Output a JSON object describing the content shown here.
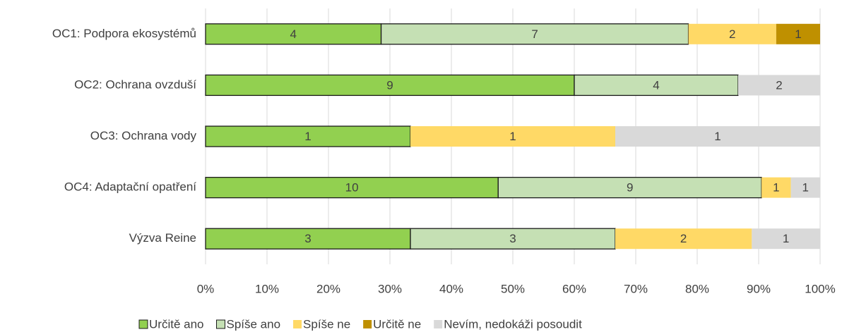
{
  "chart_data": {
    "type": "bar",
    "orientation": "horizontal",
    "stacked": "percent",
    "categories": [
      "OC1: Podpora ekosystémů",
      "OC2: Ochrana ovzduší",
      "OC3: Ochrana vody",
      "OC4: Adaptační opatření",
      "Výzva Reine"
    ],
    "series": [
      {
        "name": "Určitě ano",
        "color": "#92d050",
        "outline": true,
        "values": [
          4,
          9,
          1,
          10,
          3
        ]
      },
      {
        "name": "Spíše ano",
        "color": "#c5e0b4",
        "outline": true,
        "values": [
          7,
          4,
          0,
          9,
          3
        ]
      },
      {
        "name": "Spíše ne",
        "color": "#ffd966",
        "outline": false,
        "values": [
          2,
          0,
          1,
          1,
          2
        ]
      },
      {
        "name": "Určitě ne",
        "color": "#bf9000",
        "outline": false,
        "values": [
          1,
          0,
          0,
          0,
          0
        ]
      },
      {
        "name": "Nevím, nedokáži posoudit",
        "color": "#d9d9d9",
        "outline": false,
        "values": [
          0,
          2,
          1,
          1,
          1
        ]
      }
    ],
    "xlim": [
      0,
      100
    ],
    "xticks": [
      {
        "value": 0,
        "label": "0%"
      },
      {
        "value": 10,
        "label": "10%"
      },
      {
        "value": 20,
        "label": "20%"
      },
      {
        "value": 30,
        "label": "30%"
      },
      {
        "value": 40,
        "label": "40%"
      },
      {
        "value": 50,
        "label": "50%"
      },
      {
        "value": 60,
        "label": "60%"
      },
      {
        "value": 70,
        "label": "70%"
      },
      {
        "value": 80,
        "label": "80%"
      },
      {
        "value": 90,
        "label": "90%"
      },
      {
        "value": 100,
        "label": "100%"
      }
    ],
    "grid": true,
    "legend": "bottom"
  }
}
